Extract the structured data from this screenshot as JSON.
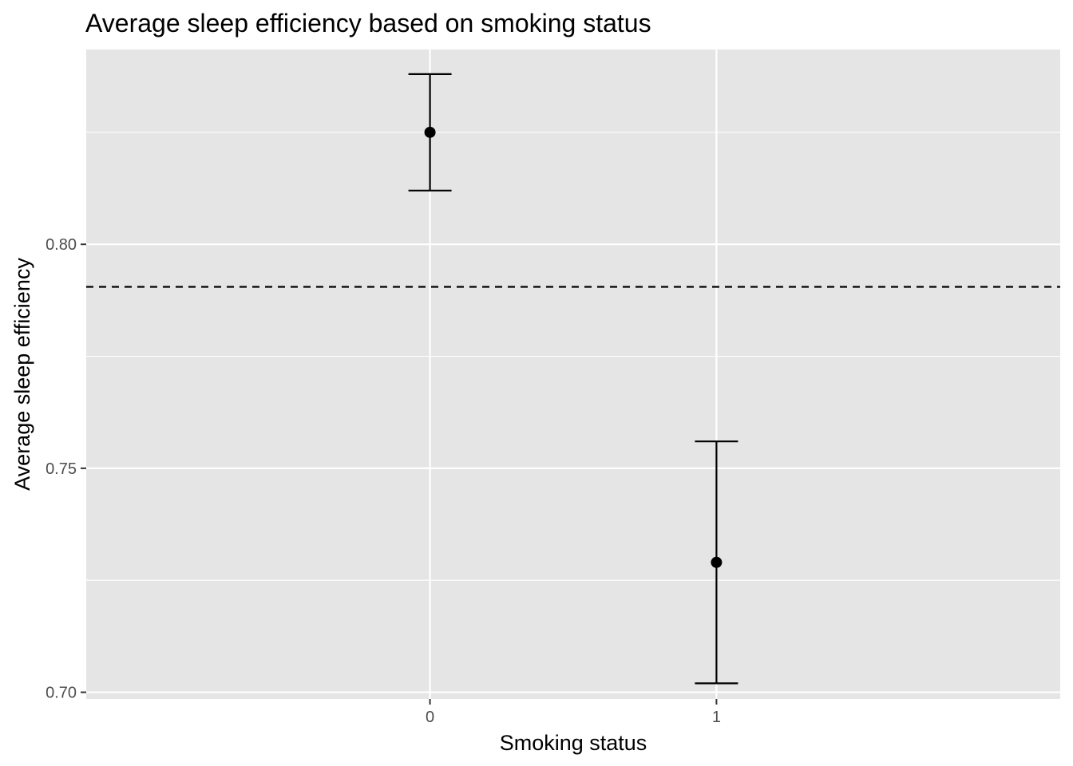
{
  "chart_data": {
    "type": "scatter",
    "title": "Average sleep efficiency based on smoking status",
    "xlabel": "Smoking status",
    "ylabel": "Average sleep efficiency",
    "categories": [
      "0",
      "1"
    ],
    "x_tick_labels": [
      "0",
      "1"
    ],
    "y_tick_labels": [
      "0.70",
      "0.75",
      "0.80"
    ],
    "y_ticks": [
      0.7,
      0.75,
      0.8
    ],
    "ylim": [
      0.6985,
      0.8435
    ],
    "points": [
      {
        "x": "0",
        "mean": 0.825,
        "lower": 0.812,
        "upper": 0.838
      },
      {
        "x": "1",
        "mean": 0.729,
        "lower": 0.702,
        "upper": 0.756
      }
    ],
    "reference_line": {
      "y": 0.7905,
      "style": "dashed"
    },
    "grid": true,
    "colors": {
      "panel_background": "#e5e5e5",
      "grid": "#ffffff",
      "points": "#000000",
      "reference_line": "#000000",
      "tick_text": "#4d4d4d"
    }
  }
}
